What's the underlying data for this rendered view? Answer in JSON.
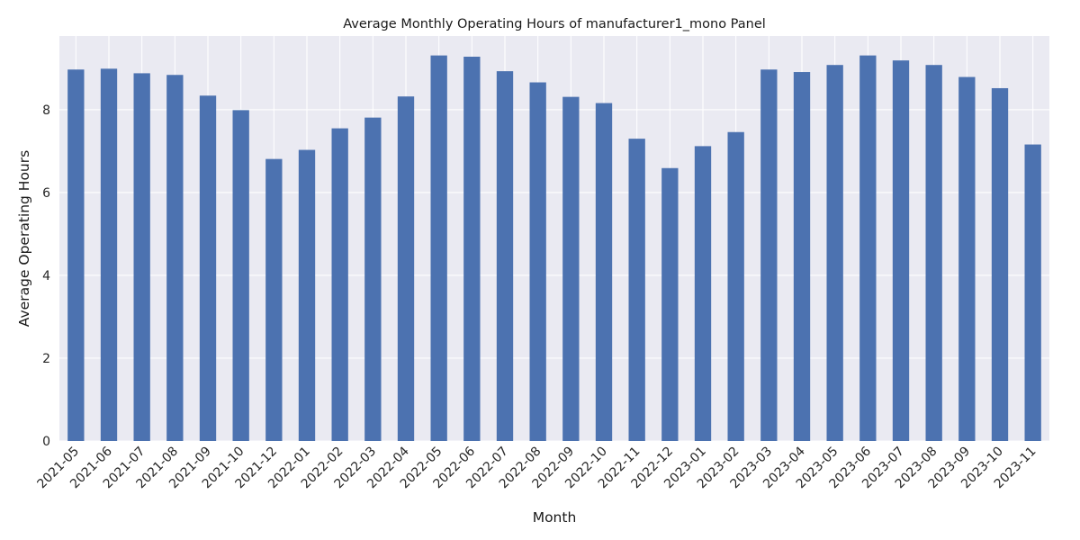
{
  "chart_data": {
    "type": "bar",
    "title": "Average Monthly Operating Hours of manufacturer1_mono Panel",
    "xlabel": "Month",
    "ylabel": "Average Operating Hours",
    "categories": [
      "2021-05",
      "2021-06",
      "2021-07",
      "2021-08",
      "2021-09",
      "2021-10",
      "2021-12",
      "2022-01",
      "2022-02",
      "2022-03",
      "2022-04",
      "2022-05",
      "2022-06",
      "2022-07",
      "2022-08",
      "2022-09",
      "2022-10",
      "2022-11",
      "2022-12",
      "2023-01",
      "2023-02",
      "2023-03",
      "2023-04",
      "2023-05",
      "2023-06",
      "2023-07",
      "2023-08",
      "2023-09",
      "2023-10",
      "2023-11"
    ],
    "values": [
      8.97,
      8.99,
      8.88,
      8.84,
      8.34,
      7.99,
      6.81,
      7.03,
      7.55,
      7.81,
      8.32,
      9.31,
      9.28,
      8.93,
      8.66,
      8.31,
      8.16,
      7.3,
      6.59,
      7.12,
      7.46,
      8.97,
      8.91,
      9.08,
      9.31,
      9.19,
      9.08,
      8.79,
      8.52,
      7.16
    ],
    "ylim": [
      0,
      9.78
    ],
    "yticks": [
      0,
      2,
      4,
      6,
      8
    ],
    "grid": true,
    "legend": "none",
    "colors": {
      "bar": "#4c72b0",
      "plot_bg": "#eaeaf2",
      "grid": "#ffffff"
    }
  }
}
